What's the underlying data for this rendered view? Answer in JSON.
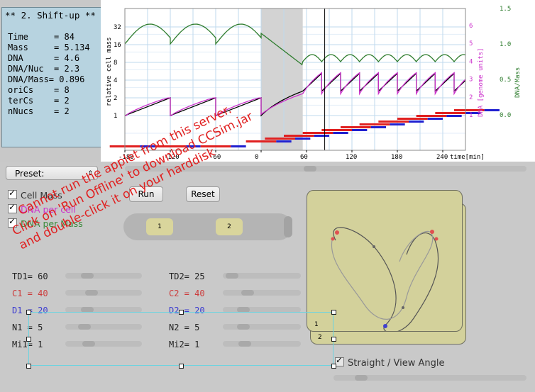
{
  "info_panel": {
    "title": "** 2. Shift-up **",
    "rows": [
      {
        "label": "Time     = 84"
      },
      {
        "label": "Mass     = 5.134"
      },
      {
        "label": "DNA      = 4.6"
      },
      {
        "label": "DNA/Nuc  = 2.3"
      },
      {
        "label": "DNA/Mass= 0.896"
      },
      {
        "label": "oriCs    = 8"
      },
      {
        "label": "terCs    = 2"
      },
      {
        "label": "nNucs    = 2"
      }
    ]
  },
  "chart_data": {
    "type": "line",
    "x_ticks": [
      "-180",
      "-120",
      "-60",
      "0",
      "60",
      "120",
      "180",
      "240"
    ],
    "x_unit": "time[min]",
    "y_left_label": "relative cell mass",
    "y_left_ticks": [
      "32",
      "16",
      "8",
      "4",
      "2",
      "1"
    ],
    "y_right1_label": "DNA [genome units]",
    "y_right1_ticks": [
      "6",
      "5",
      "4",
      "3",
      "2",
      "1"
    ],
    "y_right2_label": "DNA/Mass",
    "y_right2_ticks": [
      "1.5",
      "1.0",
      "0.5",
      "0.0"
    ],
    "shaded_region": [
      0,
      55
    ],
    "current_time": 84,
    "series": [
      {
        "name": "Cell Mass",
        "color": "#000000"
      },
      {
        "name": "DNA per cell",
        "color": "#cc33cc"
      },
      {
        "name": "DNA per Mass",
        "color": "#3c8a3c"
      }
    ]
  },
  "controls": {
    "preset_label": "Preset:",
    "run_label": "Run",
    "reset_label": "Reset",
    "checkboxes": [
      {
        "label": "Cell Mass",
        "color": "#333333"
      },
      {
        "label": "DNA per cell",
        "color": "#cc33cc"
      },
      {
        "label": "DNA per Mass",
        "color": "#3c8a3c"
      }
    ],
    "toggle_1_label": "1",
    "toggle_2_label": "2",
    "params_left": [
      {
        "label": "TD1= 60",
        "color": "#222222"
      },
      {
        "label": "C1 = 40",
        "color": "#cc3b3b"
      },
      {
        "label": "D1 = 20",
        "color": "#3a3ad0"
      },
      {
        "label": "N1 = 5",
        "color": "#222222"
      },
      {
        "label": "Mi1= 1",
        "color": "#222222"
      }
    ],
    "params_right": [
      {
        "label": "TD2= 25",
        "color": "#222222"
      },
      {
        "label": "C2 = 40",
        "color": "#cc3b3b"
      },
      {
        "label": "D2 = 20",
        "color": "#3a3ad0"
      },
      {
        "label": "N2 = 5",
        "color": "#222222"
      },
      {
        "label": "Mi2= 1",
        "color": "#222222"
      }
    ],
    "cell_card_1": "1",
    "cell_card_2": "2",
    "straight_label": "Straight / View Angle"
  },
  "overlay_message": [
    "Cannot run the applet from this server.",
    "Click on 'Run Offline' to download CCSim.jar",
    "and double-click it on your harddisk"
  ]
}
